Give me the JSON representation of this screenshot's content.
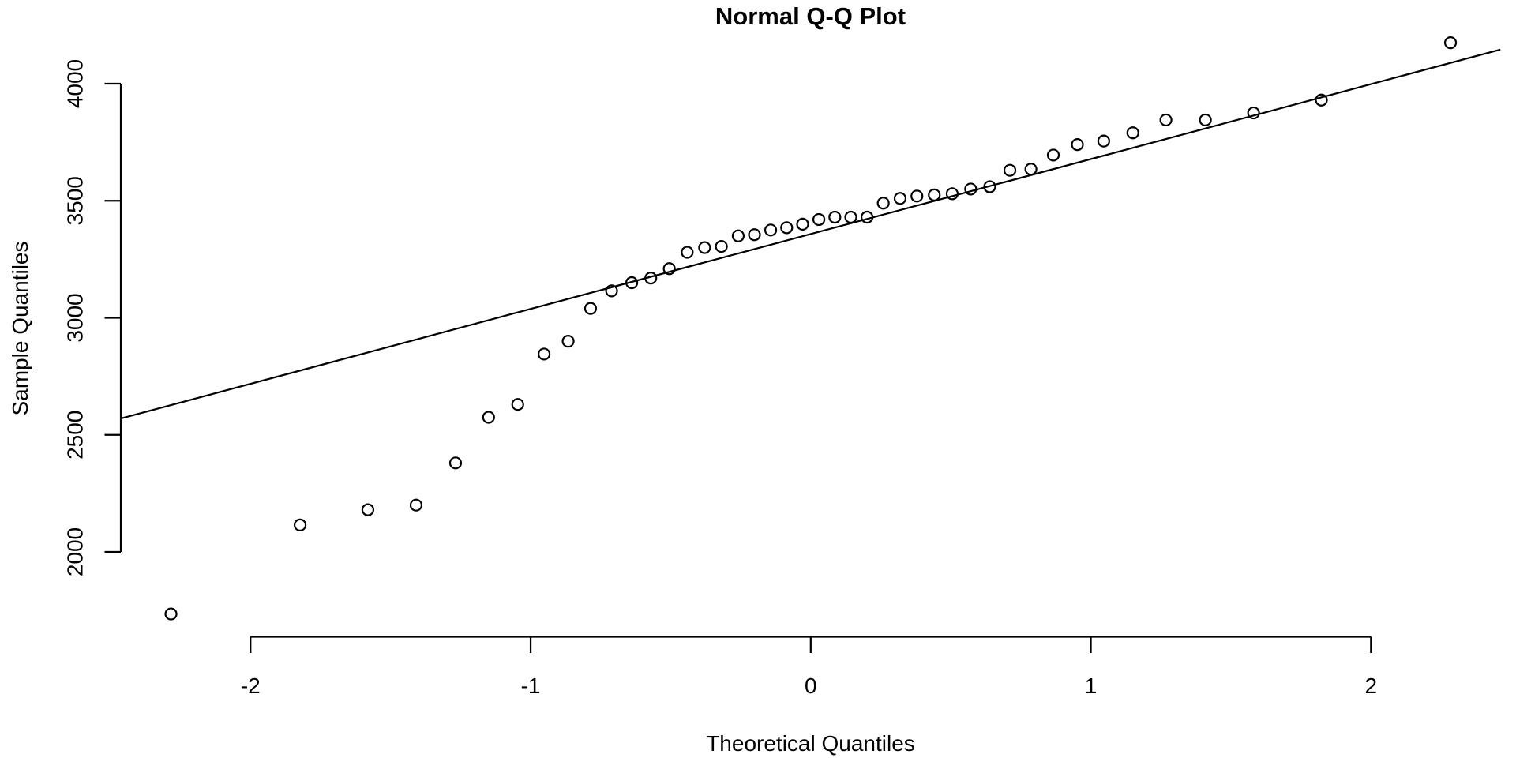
{
  "chart_data": {
    "type": "scatter",
    "subtype": "normal-qq-plot",
    "title": "Normal Q-Q Plot",
    "xlabel": "Theoretical Quantiles",
    "ylabel": "Sample Quantiles",
    "x_ticks": [
      -2,
      -1,
      0,
      1,
      2
    ],
    "y_ticks": [
      2000,
      2500,
      3000,
      3500,
      4000
    ],
    "xlim": [
      -2.47,
      2.47
    ],
    "ylim": [
      1637,
      4273
    ],
    "grid": false,
    "legend": null,
    "n_points": 44,
    "marker": "open-circle",
    "foreground_color": "#000000",
    "background_color": "#ffffff",
    "points": {
      "theoretical": [
        -2.284,
        -1.823,
        -1.581,
        -1.409,
        -1.268,
        -1.15,
        -1.046,
        -0.952,
        -0.866,
        -0.786,
        -0.711,
        -0.639,
        -0.571,
        -0.505,
        -0.441,
        -0.379,
        -0.319,
        -0.259,
        -0.201,
        -0.143,
        -0.086,
        -0.029,
        0.029,
        0.086,
        0.143,
        0.201,
        0.259,
        0.319,
        0.379,
        0.441,
        0.505,
        0.571,
        0.639,
        0.711,
        0.786,
        0.866,
        0.952,
        1.046,
        1.15,
        1.268,
        1.409,
        1.581,
        1.823,
        2.284
      ],
      "sample": [
        1735,
        2115,
        2180,
        2200,
        2380,
        2575,
        2630,
        2845,
        2900,
        3040,
        3115,
        3150,
        3170,
        3210,
        3280,
        3300,
        3305,
        3350,
        3355,
        3375,
        3385,
        3400,
        3420,
        3430,
        3430,
        3430,
        3490,
        3510,
        3520,
        3525,
        3530,
        3550,
        3560,
        3630,
        3635,
        3695,
        3740,
        3755,
        3790,
        3845,
        3845,
        3875,
        3930,
        4175
      ]
    },
    "reference_line": {
      "type": "qqline",
      "intercept": 3358,
      "slope": 320,
      "x_span": [
        -2.462,
        2.462
      ],
      "color": "#000000"
    }
  }
}
